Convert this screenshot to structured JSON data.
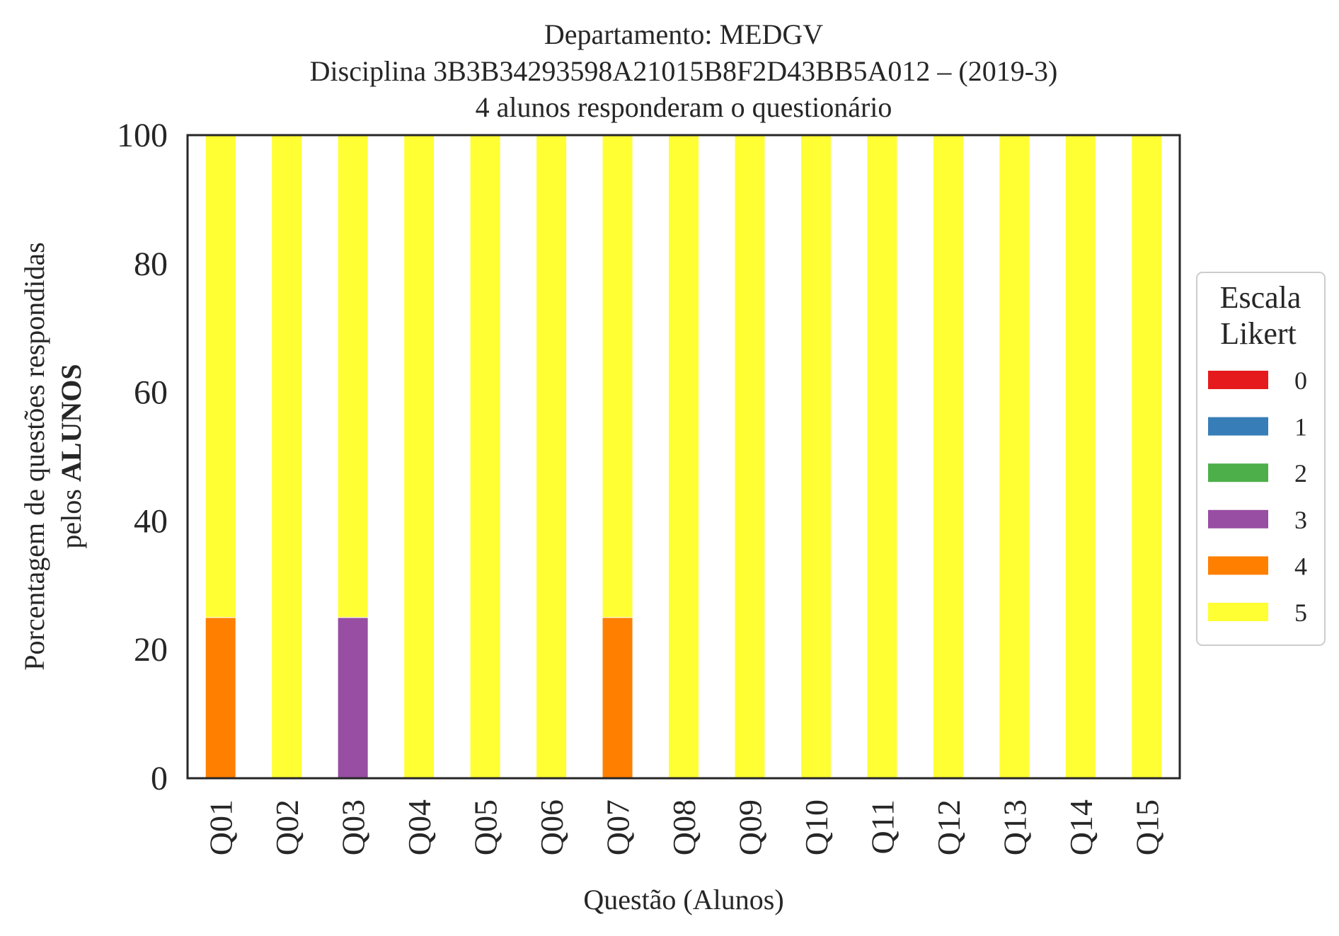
{
  "chart_data": {
    "type": "bar",
    "stacked": true,
    "title": [
      "Departamento: MEDGV",
      "Disciplina 3B3B34293598A21015B8F2D43BB5A012 – (2019-3)",
      "4 alunos responderam o questionário"
    ],
    "xlabel": "Questão (Alunos)",
    "ylabel": {
      "line1": "Porcentagem de questões respondidas",
      "line2_prefix": "pelos ",
      "line2_bold": "ALUNOS"
    },
    "ylim": [
      0,
      100
    ],
    "yticks": [
      "0",
      "20",
      "40",
      "60",
      "80",
      "100"
    ],
    "grid": false,
    "categories": [
      "Q01",
      "Q02",
      "Q03",
      "Q04",
      "Q05",
      "Q06",
      "Q07",
      "Q08",
      "Q09",
      "Q10",
      "Q11",
      "Q12",
      "Q13",
      "Q14",
      "Q15"
    ],
    "legend": {
      "title": [
        "Escala",
        "Likert"
      ],
      "placement": "center-right outside"
    },
    "series": [
      {
        "name": "0",
        "color": "#e41a1c",
        "values": [
          0,
          0,
          0,
          0,
          0,
          0,
          0,
          0,
          0,
          0,
          0,
          0,
          0,
          0,
          0
        ]
      },
      {
        "name": "1",
        "color": "#377eb8",
        "values": [
          0,
          0,
          0,
          0,
          0,
          0,
          0,
          0,
          0,
          0,
          0,
          0,
          0,
          0,
          0
        ]
      },
      {
        "name": "2",
        "color": "#4daf4a",
        "values": [
          0,
          0,
          0,
          0,
          0,
          0,
          0,
          0,
          0,
          0,
          0,
          0,
          0,
          0,
          0
        ]
      },
      {
        "name": "3",
        "color": "#984ea3",
        "values": [
          0,
          0,
          25,
          0,
          0,
          0,
          0,
          0,
          0,
          0,
          0,
          0,
          0,
          0,
          0
        ]
      },
      {
        "name": "4",
        "color": "#ff7f00",
        "values": [
          25,
          0,
          0,
          0,
          0,
          0,
          25,
          0,
          0,
          0,
          0,
          0,
          0,
          0,
          0
        ]
      },
      {
        "name": "5",
        "color": "#ffff33",
        "values": [
          75,
          100,
          75,
          100,
          100,
          100,
          75,
          100,
          100,
          100,
          100,
          100,
          100,
          100,
          100
        ]
      }
    ]
  }
}
